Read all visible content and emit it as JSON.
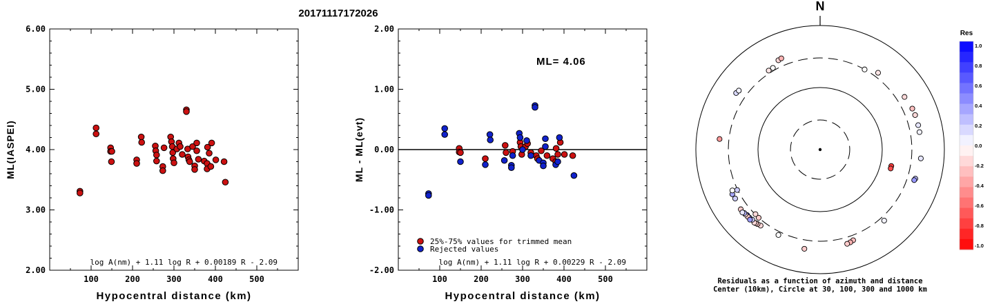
{
  "title": "20171117172026",
  "chart_data": [
    {
      "type": "scatter",
      "ylabel": "ML(IASPEI)",
      "xlabel": "Hypocentral distance (km)",
      "xlim": [
        0,
        600
      ],
      "ylim": [
        2.0,
        6.0
      ],
      "xticks": [
        "100",
        "200",
        "300",
        "400",
        "500"
      ],
      "yticks": [
        "2.00",
        "3.00",
        "4.00",
        "5.00",
        "6.00"
      ],
      "formula": "log A(nm) + 1.11 log R + 0.00189 R - 2.09",
      "series": [
        {
          "color": "#cc1111",
          "points": [
            [
              73,
              3.31
            ],
            [
              73,
              3.28
            ],
            [
              112,
              4.36
            ],
            [
              112,
              4.26
            ],
            [
              147,
              4.03
            ],
            [
              147,
              3.97
            ],
            [
              149,
              3.8
            ],
            [
              150,
              3.97
            ],
            [
              210,
              3.83
            ],
            [
              210,
              3.77
            ],
            [
              221,
              4.21
            ],
            [
              222,
              4.12
            ],
            [
              255,
              4.06
            ],
            [
              256,
              3.98
            ],
            [
              258,
              3.91
            ],
            [
              258,
              3.81
            ],
            [
              273,
              3.72
            ],
            [
              273,
              3.65
            ],
            [
              276,
              4.03
            ],
            [
              292,
              4.21
            ],
            [
              294,
              4.13
            ],
            [
              296,
              4.05
            ],
            [
              297,
              3.95
            ],
            [
              298,
              3.85
            ],
            [
              300,
              3.78
            ],
            [
              307,
              4.01
            ],
            [
              312,
              4.11
            ],
            [
              315,
              4.05
            ],
            [
              320,
              3.92
            ],
            [
              330,
              4.66
            ],
            [
              330,
              4.63
            ],
            [
              333,
              4.01
            ],
            [
              334,
              3.88
            ],
            [
              336,
              3.83
            ],
            [
              338,
              3.8
            ],
            [
              345,
              4.05
            ],
            [
              350,
              3.73
            ],
            [
              350,
              3.67
            ],
            [
              355,
              4.11
            ],
            [
              355,
              3.98
            ],
            [
              359,
              3.84
            ],
            [
              373,
              3.81
            ],
            [
              380,
              3.77
            ],
            [
              380,
              3.68
            ],
            [
              381,
              4.04
            ],
            [
              385,
              3.94
            ],
            [
              389,
              3.72
            ],
            [
              391,
              4.11
            ],
            [
              401,
              3.83
            ],
            [
              421,
              3.8
            ],
            [
              424,
              3.46
            ]
          ]
        }
      ]
    },
    {
      "type": "scatter",
      "ylabel": "ML - ML(evt)",
      "xlabel": "Hypocentral distance (km)",
      "xlim": [
        0,
        600
      ],
      "ylim": [
        -2.0,
        2.0
      ],
      "xticks": [
        "100",
        "200",
        "300",
        "400",
        "500"
      ],
      "yticks": [
        "-2.00",
        "-1.00",
        "0.00",
        "1.00",
        "2.00"
      ],
      "annotation": "ML= 4.06",
      "formula": "log A(nm) + 1.11 log R + 0.00229 R - 2.09",
      "legend": [
        {
          "label": "25%-75% values for trimmed mean",
          "color": "#cc1111"
        },
        {
          "label": "Rejected values",
          "color": "#1122cc"
        }
      ],
      "series": [
        {
          "name": "25%-75% values for trimmed mean",
          "color": "#cc1111",
          "points": [
            [
              147,
              0.02
            ],
            [
              147,
              -0.04
            ],
            [
              150,
              -0.05
            ],
            [
              210,
              -0.15
            ],
            [
              258,
              0.07
            ],
            [
              260,
              -0.05
            ],
            [
              276,
              -0.03
            ],
            [
              294,
              0.12
            ],
            [
              296,
              0.05
            ],
            [
              298,
              -0.08
            ],
            [
              307,
              0.05
            ],
            [
              312,
              0.1
            ],
            [
              320,
              -0.05
            ],
            [
              333,
              -0.1
            ],
            [
              336,
              -0.15
            ],
            [
              345,
              -0.02
            ],
            [
              359,
              -0.1
            ],
            [
              373,
              -0.15
            ],
            [
              380,
              -0.2
            ],
            [
              381,
              0.02
            ],
            [
              385,
              -0.08
            ],
            [
              391,
              0.12
            ],
            [
              401,
              -0.08
            ],
            [
              421,
              -0.1
            ]
          ]
        },
        {
          "name": "Rejected values",
          "color": "#1122cc",
          "points": [
            [
              73,
              -0.73
            ],
            [
              73,
              -0.76
            ],
            [
              112,
              0.35
            ],
            [
              112,
              0.25
            ],
            [
              150,
              -0.2
            ],
            [
              210,
              -0.25
            ],
            [
              221,
              0.25
            ],
            [
              222,
              0.16
            ],
            [
              256,
              -0.18
            ],
            [
              273,
              -0.26
            ],
            [
              273,
              -0.3
            ],
            [
              276,
              -0.1
            ],
            [
              292,
              0.27
            ],
            [
              294,
              0.2
            ],
            [
              300,
              0.0
            ],
            [
              310,
              0.15
            ],
            [
              320,
              -0.1
            ],
            [
              330,
              0.73
            ],
            [
              330,
              0.7
            ],
            [
              340,
              -0.18
            ],
            [
              350,
              -0.22
            ],
            [
              350,
              -0.27
            ],
            [
              355,
              0.18
            ],
            [
              355,
              0.05
            ],
            [
              380,
              -0.25
            ],
            [
              385,
              -0.2
            ],
            [
              389,
              0.2
            ],
            [
              424,
              -0.43
            ]
          ]
        }
      ]
    },
    {
      "type": "polar",
      "north_label": "N",
      "caption_line1": "Residuals as a function of azimuth and distance",
      "caption_line2": "Center (10km), Circle at 30, 100, 300 and 1000 km",
      "colorbar": {
        "title": "Res",
        "ticks": [
          "1.0",
          "0.8",
          "0.6",
          "0.4",
          "0.2",
          "0.0",
          "-0.2",
          "-0.4",
          "-0.6",
          "-0.8",
          "-1.0"
        ]
      },
      "stations": [
        {
          "azimuth": 29,
          "distance": 300,
          "residual": 0.0
        },
        {
          "azimuth": 37,
          "distance": 355,
          "residual": -0.1
        },
        {
          "azimuth": 58,
          "distance": 400,
          "residual": -0.15
        },
        {
          "azimuth": 66,
          "distance": 421,
          "residual": -0.25
        },
        {
          "azimuth": 70,
          "distance": 424,
          "residual": -0.15
        },
        {
          "azimuth": 76,
          "distance": 424,
          "residual": 0.1
        },
        {
          "azimuth": 80,
          "distance": 421,
          "residual": 0.05
        },
        {
          "azimuth": 95,
          "distance": 424,
          "residual": 0.1
        },
        {
          "azimuth": 107,
          "distance": 401,
          "residual": 0.25
        },
        {
          "azimuth": 108,
          "distance": 391,
          "residual": 0.4
        },
        {
          "azimuth": 103,
          "distance": 150,
          "residual": -0.75
        },
        {
          "azimuth": 105,
          "distance": 150,
          "residual": -0.7
        },
        {
          "azimuth": 138,
          "distance": 347,
          "residual": 0.05
        },
        {
          "azimuth": 160,
          "distance": 359,
          "residual": -0.25
        },
        {
          "azimuth": 162,
          "distance": 373,
          "residual": -0.3
        },
        {
          "azimuth": 164,
          "distance": 380,
          "residual": -0.2
        },
        {
          "azimuth": 189,
          "distance": 416,
          "residual": -0.2
        },
        {
          "azimuth": 206,
          "distance": 340,
          "residual": 0.0
        },
        {
          "azimuth": 218,
          "distance": 359,
          "residual": -0.15
        },
        {
          "azimuth": 220,
          "distance": 368,
          "residual": -0.2
        },
        {
          "azimuth": 221,
          "distance": 375,
          "residual": -0.2
        },
        {
          "azimuth": 222,
          "distance": 383,
          "residual": -0.15
        },
        {
          "azimuth": 224,
          "distance": 373,
          "residual": 0.2
        },
        {
          "azimuth": 226,
          "distance": 381,
          "residual": 0.5
        },
        {
          "azimuth": 228,
          "distance": 379,
          "residual": 0.7
        },
        {
          "azimuth": 227,
          "distance": 388,
          "residual": -0.2
        },
        {
          "azimuth": 229,
          "distance": 391,
          "residual": -0.1
        },
        {
          "azimuth": 230,
          "distance": 391,
          "residual": 0.3
        },
        {
          "azimuth": 225,
          "distance": 395,
          "residual": 0.4
        },
        {
          "azimuth": 233,
          "distance": 397,
          "residual": -0.2
        },
        {
          "azimuth": 231,
          "distance": 407,
          "residual": 0.1
        },
        {
          "azimuth": 222,
          "distance": 301,
          "residual": -0.2
        },
        {
          "azimuth": 225,
          "distance": 296,
          "residual": -0.15
        },
        {
          "azimuth": 243,
          "distance": 385,
          "residual": 0.35
        },
        {
          "azimuth": 244,
          "distance": 306,
          "residual": 0.2
        },
        {
          "azimuth": 240,
          "distance": 379,
          "residual": 0.2
        },
        {
          "azimuth": 245,
          "distance": 362,
          "residual": 0.0
        },
        {
          "azimuth": 276,
          "distance": 424,
          "residual": -0.4
        },
        {
          "azimuth": 304,
          "distance": 427,
          "residual": 0.15
        },
        {
          "azimuth": 306,
          "distance": 414,
          "residual": 0.05
        },
        {
          "azimuth": 327,
          "distance": 330,
          "residual": -0.1
        },
        {
          "azimuth": 330,
          "distance": 331,
          "residual": 0.0
        },
        {
          "azimuth": 335,
          "distance": 388,
          "residual": -0.15
        },
        {
          "azimuth": 337,
          "distance": 396,
          "residual": -0.3
        }
      ]
    }
  ]
}
